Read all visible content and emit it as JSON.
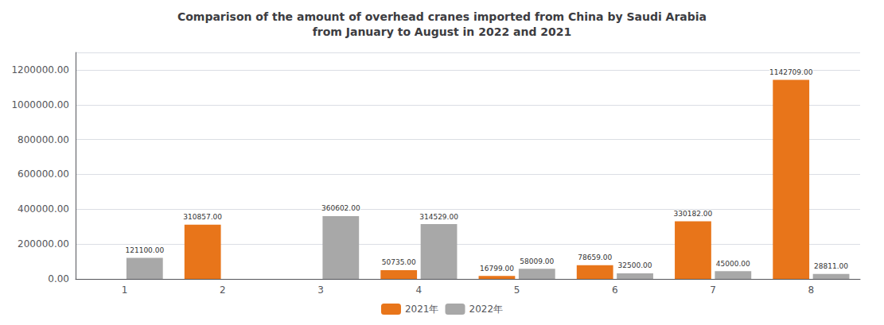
{
  "chart_data": {
    "type": "bar",
    "title": "Comparison of the amount of overhead cranes imported from China by Saudi Arabia\nfrom January to August in 2022 and 2021",
    "categories": [
      "1",
      "2",
      "3",
      "4",
      "5",
      "6",
      "7",
      "8"
    ],
    "series": [
      {
        "name": "2021年",
        "color": "#E8751A",
        "values": [
          0,
          310857.0,
          0,
          50735.0,
          16799.0,
          78659.0,
          330182.0,
          1142709.0
        ],
        "value_labels": [
          null,
          "310857.00",
          null,
          "50735.00",
          "16799.00",
          "78659.00",
          "330182.00",
          "1142709.00"
        ]
      },
      {
        "name": "2022年",
        "color": "#A8A8A8",
        "values": [
          121100.0,
          0,
          360602.0,
          314529.0,
          58009.0,
          32500.0,
          45000.0,
          28811.0
        ],
        "value_labels": [
          "121100.00",
          null,
          "360602.00",
          "314529.00",
          "58009.00",
          "32500.00",
          "45000.00",
          "28811.00"
        ]
      }
    ],
    "ylim": [
      0,
      1300000
    ],
    "yticks": [
      {
        "value": 0,
        "label": "0.00"
      },
      {
        "value": 200000,
        "label": "200000.00"
      },
      {
        "value": 400000,
        "label": "400000.00"
      },
      {
        "value": 600000,
        "label": "600000.00"
      },
      {
        "value": 800000,
        "label": "800000.00"
      },
      {
        "value": 1000000,
        "label": "1000000.00"
      },
      {
        "value": 1200000,
        "label": "1200000.00"
      }
    ],
    "grid": true,
    "legend": "bottom",
    "data_labels": true
  }
}
